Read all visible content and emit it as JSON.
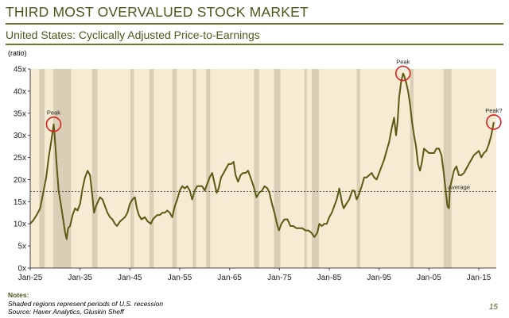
{
  "header": {
    "title": "THIRD MOST OVERVALUED STOCK MARKET",
    "subtitle": "United States: Cyclically Adjusted Price-to-Earnings",
    "unit": "(ratio)"
  },
  "chart_data": {
    "type": "line",
    "title": "United States: Cyclically Adjusted Price-to-Earnings",
    "ylabel": "(ratio)",
    "xlabel": "",
    "xlim": [
      1925,
      2018.5
    ],
    "ylim": [
      0,
      45
    ],
    "x_ticks": [
      1925,
      1935,
      1945,
      1955,
      1965,
      1975,
      1985,
      1995,
      2005,
      2015
    ],
    "x_tick_labels": [
      "Jan-25",
      "Jan-35",
      "Jan-45",
      "Jan-55",
      "Jan-65",
      "Jan-75",
      "Jan-85",
      "Jan-95",
      "Jan-05",
      "Jan-15"
    ],
    "y_ticks": [
      0,
      5,
      10,
      15,
      20,
      25,
      30,
      35,
      40,
      45
    ],
    "y_tick_labels": [
      "0x",
      "5x",
      "10x",
      "15x",
      "20x",
      "25x",
      "30x",
      "35x",
      "40x",
      "45x"
    ],
    "grid": false,
    "line_color": "#5a5a14",
    "background_color": "#f5ecd3",
    "recession_color": "#d9cfb6",
    "average": {
      "value": 17.3,
      "label": "Average"
    },
    "recessions": [
      [
        1926.8,
        1927.9
      ],
      [
        1929.6,
        1933.2
      ],
      [
        1937.4,
        1938.5
      ],
      [
        1945.1,
        1945.8
      ],
      [
        1948.9,
        1949.8
      ],
      [
        1953.5,
        1954.4
      ],
      [
        1957.6,
        1958.3
      ],
      [
        1960.3,
        1961.1
      ],
      [
        1969.9,
        1970.9
      ],
      [
        1973.9,
        1975.2
      ],
      [
        1980.0,
        1980.5
      ],
      [
        1981.5,
        1982.9
      ],
      [
        1990.5,
        1991.2
      ],
      [
        2001.2,
        2001.9
      ],
      [
        2007.9,
        2009.5
      ]
    ],
    "series": [
      {
        "x": [
          1925.0,
          1925.6,
          1926.3,
          1927.0,
          1927.6,
          1928.2,
          1928.7,
          1929.2,
          1929.7,
          1929.9,
          1930.3,
          1930.7,
          1931.2,
          1931.6,
          1932.0,
          1932.3,
          1932.6,
          1933.0,
          1933.5,
          1934.0,
          1934.5,
          1935.0,
          1935.5,
          1936.0,
          1936.5,
          1937.0,
          1937.4,
          1937.8,
          1938.2,
          1938.6,
          1939.0,
          1939.5,
          1940.0,
          1940.5,
          1941.0,
          1941.5,
          1942.0,
          1942.4,
          1943.0,
          1943.5,
          1944.0,
          1944.5,
          1945.0,
          1945.5,
          1946.0,
          1946.4,
          1946.8,
          1947.3,
          1948.0,
          1948.6,
          1949.2,
          1949.6,
          1950.0,
          1950.5,
          1951.0,
          1951.5,
          1952.0,
          1952.5,
          1953.0,
          1953.5,
          1954.0,
          1954.5,
          1955.0,
          1955.5,
          1956.0,
          1956.5,
          1957.0,
          1957.5,
          1958.0,
          1958.5,
          1959.0,
          1959.5,
          1960.0,
          1960.5,
          1961.0,
          1961.5,
          1962.0,
          1962.4,
          1962.8,
          1963.3,
          1963.8,
          1964.3,
          1964.8,
          1965.3,
          1965.8,
          1966.2,
          1966.7,
          1967.2,
          1967.7,
          1968.2,
          1968.7,
          1969.2,
          1969.8,
          1970.4,
          1970.9,
          1971.5,
          1972.0,
          1972.6,
          1973.0,
          1973.5,
          1974.0,
          1974.5,
          1974.9,
          1975.4,
          1976.0,
          1976.6,
          1977.2,
          1977.8,
          1978.4,
          1979.0,
          1979.6,
          1980.2,
          1980.8,
          1981.4,
          1982.0,
          1982.6,
          1983.0,
          1983.5,
          1984.0,
          1984.5,
          1985.0,
          1985.5,
          1986.0,
          1986.5,
          1987.0,
          1987.6,
          1987.9,
          1988.4,
          1989.0,
          1989.6,
          1990.0,
          1990.5,
          1990.9,
          1991.5,
          1992.0,
          1992.5,
          1993.0,
          1993.5,
          1994.0,
          1994.5,
          1995.0,
          1995.5,
          1996.0,
          1996.5,
          1997.0,
          1997.5,
          1998.0,
          1998.4,
          1998.7,
          1999.0,
          1999.4,
          1999.8,
          2000.0,
          2000.4,
          2000.8,
          2001.2,
          2001.6,
          2002.0,
          2002.4,
          2002.8,
          2003.2,
          2003.6,
          2004.0,
          2004.5,
          2005.0,
          2005.5,
          2006.0,
          2006.5,
          2007.0,
          2007.5,
          2007.9,
          2008.3,
          2008.7,
          2009.0,
          2009.2,
          2009.6,
          2010.0,
          2010.5,
          2011.0,
          2011.5,
          2012.0,
          2012.5,
          2013.0,
          2013.5,
          2014.0,
          2014.5,
          2015.0,
          2015.5,
          2016.0,
          2016.5,
          2017.0,
          2017.5,
          2018.0
        ],
        "values": [
          10.0,
          10.8,
          12.0,
          13.5,
          17.0,
          20.5,
          25.0,
          28.5,
          32.5,
          30.0,
          23.5,
          17.5,
          14.0,
          11.0,
          8.0,
          6.5,
          9.0,
          9.5,
          12.0,
          13.5,
          13.0,
          14.5,
          18.0,
          20.5,
          22.0,
          21.0,
          17.0,
          12.5,
          14.0,
          15.0,
          16.0,
          15.5,
          14.0,
          12.5,
          11.5,
          11.0,
          10.0,
          9.5,
          10.5,
          11.0,
          11.5,
          12.5,
          14.5,
          15.5,
          16.0,
          13.5,
          12.0,
          11.0,
          11.5,
          10.5,
          10.0,
          11.0,
          11.5,
          12.0,
          12.0,
          12.5,
          12.5,
          13.0,
          12.5,
          11.5,
          14.0,
          15.5,
          17.5,
          18.5,
          18.0,
          18.5,
          17.5,
          15.5,
          17.5,
          18.5,
          18.5,
          18.5,
          17.5,
          19.0,
          20.5,
          21.5,
          19.0,
          17.0,
          18.0,
          20.5,
          21.5,
          22.5,
          23.5,
          23.5,
          24.0,
          21.0,
          19.5,
          21.0,
          21.5,
          21.5,
          22.0,
          20.5,
          18.5,
          16.0,
          17.0,
          17.5,
          18.5,
          18.0,
          17.0,
          14.5,
          12.5,
          10.0,
          8.5,
          10.0,
          11.0,
          11.0,
          9.5,
          9.5,
          9.0,
          9.0,
          9.0,
          8.5,
          8.5,
          8.0,
          7.0,
          8.0,
          10.0,
          9.5,
          10.0,
          10.0,
          11.5,
          12.5,
          14.0,
          15.5,
          18.0,
          14.5,
          13.5,
          14.5,
          15.5,
          17.5,
          17.5,
          15.5,
          16.5,
          18.5,
          20.5,
          20.5,
          21.0,
          21.5,
          20.5,
          20.0,
          21.5,
          23.0,
          24.5,
          26.5,
          28.5,
          31.5,
          34.0,
          30.0,
          33.0,
          38.5,
          42.0,
          44.0,
          43.5,
          42.0,
          40.0,
          37.0,
          33.0,
          30.0,
          27.5,
          23.5,
          22.0,
          24.0,
          27.0,
          26.5,
          26.0,
          26.0,
          26.0,
          27.0,
          27.0,
          25.5,
          22.0,
          18.0,
          14.0,
          13.5,
          18.0,
          20.0,
          22.0,
          23.0,
          21.0,
          21.0,
          21.5,
          22.5,
          23.5,
          24.5,
          25.5,
          26.0,
          26.5,
          25.0,
          26.0,
          26.5,
          28.0,
          30.0,
          33.0
        ]
      }
    ],
    "annotations": [
      {
        "label": "Peak",
        "x": 1929.7,
        "y": 32.5
      },
      {
        "label": "Peak",
        "x": 1999.8,
        "y": 44.0
      },
      {
        "label": "Peak?",
        "x": 2018.0,
        "y": 33.0
      }
    ]
  },
  "footer": {
    "notes_heading": "Notes:",
    "note_line": "Shaded regions represent periods of U.S. recession",
    "source_line": "Source: Haver Analytics, Gluskin Sheff",
    "page_number": "15"
  }
}
